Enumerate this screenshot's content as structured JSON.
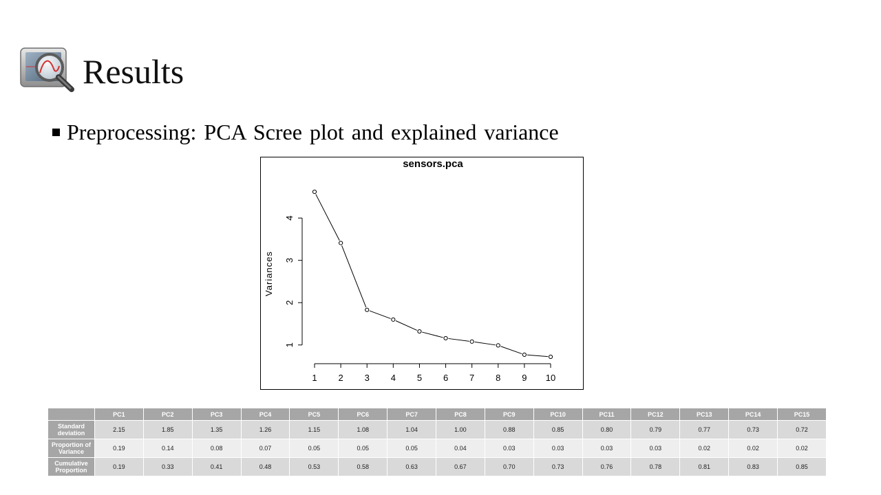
{
  "slide": {
    "title": "Results",
    "bullet": "Preprocessing: PCA Scree plot and explained variance",
    "logo_icon": "magnifier-monitor-icon"
  },
  "chart_data": {
    "type": "line",
    "title": "sensors.pca",
    "xlabel": "",
    "ylabel": "Variances",
    "x": [
      1,
      2,
      3,
      4,
      5,
      6,
      7,
      8,
      9,
      10
    ],
    "values": [
      4.62,
      3.41,
      1.83,
      1.6,
      1.32,
      1.16,
      1.08,
      0.99,
      0.77,
      0.72
    ],
    "xticks": [
      "1",
      "2",
      "3",
      "4",
      "5",
      "6",
      "7",
      "8",
      "9",
      "10"
    ],
    "yticks": [
      1,
      2,
      3,
      4
    ],
    "xlim": [
      1,
      10
    ],
    "ylim": [
      0.72,
      4.62
    ],
    "grid": false,
    "markers": "open-circle"
  },
  "table": {
    "columns": [
      "PC1",
      "PC2",
      "PC3",
      "PC4",
      "PC5",
      "PC6",
      "PC7",
      "PC8",
      "PC9",
      "PC10",
      "PC11",
      "PC12",
      "PC13",
      "PC14",
      "PC15"
    ],
    "rows": [
      {
        "label": "Standard deviation",
        "values": [
          "2.15",
          "1.85",
          "1.35",
          "1.26",
          "1.15",
          "1.08",
          "1.04",
          "1.00",
          "0.88",
          "0.85",
          "0.80",
          "0.79",
          "0.77",
          "0.73",
          "0.72"
        ]
      },
      {
        "label": "Proportion of Variance",
        "values": [
          "0.19",
          "0.14",
          "0.08",
          "0.07",
          "0.05",
          "0.05",
          "0.05",
          "0.04",
          "0.03",
          "0.03",
          "0.03",
          "0.03",
          "0.02",
          "0.02",
          "0.02"
        ]
      },
      {
        "label": "Cumulative Proportion",
        "values": [
          "0.19",
          "0.33",
          "0.41",
          "0.48",
          "0.53",
          "0.58",
          "0.63",
          "0.67",
          "0.70",
          "0.73",
          "0.76",
          "0.78",
          "0.81",
          "0.83",
          "0.85"
        ]
      }
    ]
  }
}
